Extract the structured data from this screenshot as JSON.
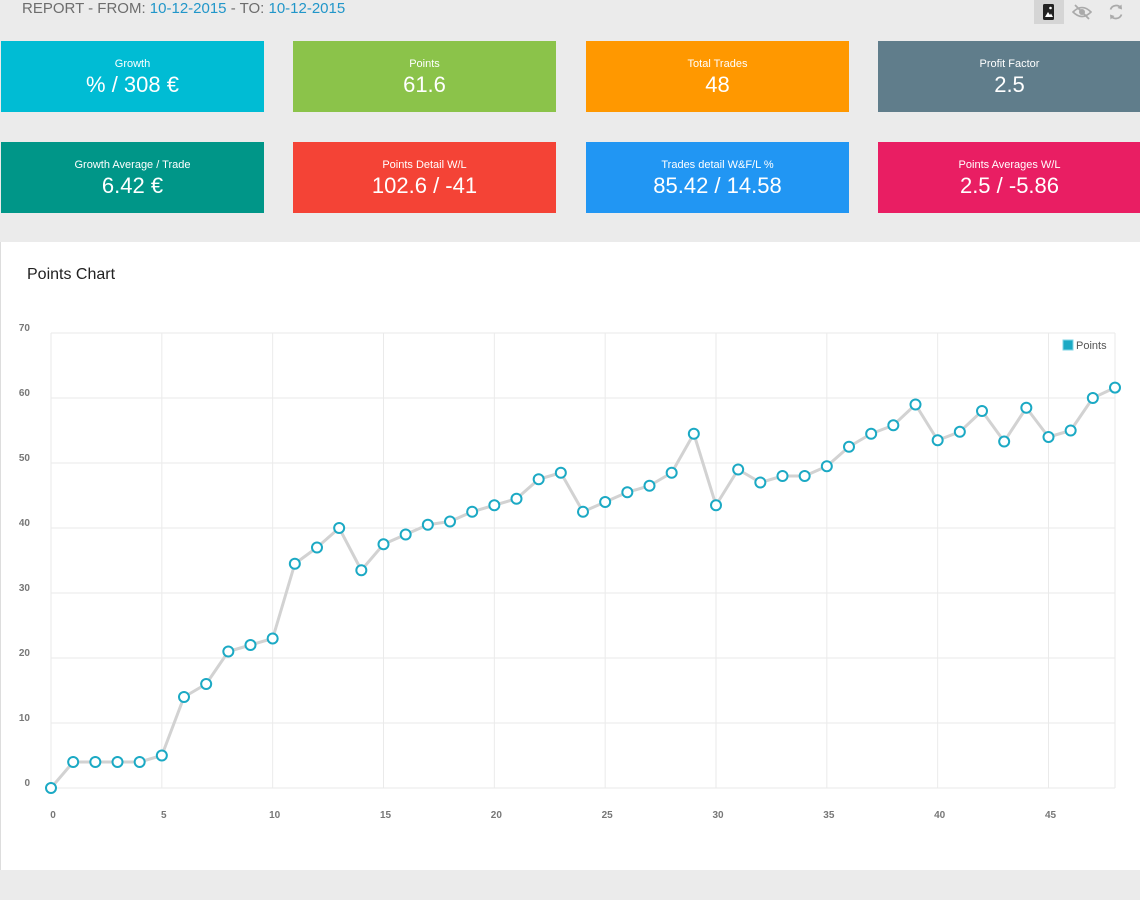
{
  "header": {
    "prefix": "REPORT - FROM: ",
    "from_date": "10-12-2015",
    "separator": " - TO: ",
    "to_date": "10-12-2015",
    "tools": [
      {
        "icon": "bookmark-image-icon",
        "active": true
      },
      {
        "icon": "eye-off-icon",
        "active": false
      },
      {
        "icon": "refresh-icon",
        "active": false
      }
    ]
  },
  "cards": [
    {
      "label": "Growth",
      "value": "% / 308 €",
      "color": "#00bcd4"
    },
    {
      "label": "Points",
      "value": "61.6",
      "color": "#8bc34a"
    },
    {
      "label": "Total Trades",
      "value": "48",
      "color": "#ff9800"
    },
    {
      "label": "Profit Factor",
      "value": "2.5",
      "color": "#607d8b"
    },
    {
      "label": "Growth Average / Trade",
      "value": "6.42 €",
      "color": "#009688"
    },
    {
      "label": "Points Detail W/L",
      "value": "102.6 / -41",
      "color": "#f44336"
    },
    {
      "label": "Trades detail W&F/L %",
      "value": "85.42 / 14.58",
      "color": "#2196f3"
    },
    {
      "label": "Points Averages W/L",
      "value": "2.5 / -5.86",
      "color": "#e91e63"
    }
  ],
  "chart_title": "Points Chart",
  "chart_data": {
    "type": "line",
    "title": "Points Chart",
    "xlabel": "",
    "ylabel": "",
    "xlim": [
      0,
      48
    ],
    "ylim": [
      0,
      70
    ],
    "x_ticks": [
      0,
      5,
      10,
      15,
      20,
      25,
      30,
      35,
      40,
      45
    ],
    "y_ticks": [
      0,
      10,
      20,
      30,
      40,
      50,
      60,
      70
    ],
    "x_grid_step": 5,
    "y_grid_step": 10,
    "grid": true,
    "legend": "top-right",
    "line_color": "#d2d2d2",
    "marker_color": "#1ba9c4",
    "series": [
      {
        "name": "Points",
        "x": [
          0,
          1,
          2,
          3,
          4,
          5,
          6,
          7,
          8,
          9,
          10,
          11,
          12,
          13,
          14,
          15,
          16,
          17,
          18,
          19,
          20,
          21,
          22,
          23,
          24,
          25,
          26,
          27,
          28,
          29,
          30,
          31,
          32,
          33,
          34,
          35,
          36,
          37,
          38,
          39,
          40,
          41,
          42,
          43,
          44,
          45,
          46,
          47,
          48
        ],
        "values": [
          0,
          4,
          4,
          4,
          4,
          5,
          14,
          16,
          21,
          22,
          23,
          34.5,
          37,
          40,
          33.5,
          37.5,
          39,
          40.5,
          41,
          42.5,
          43.5,
          44.5,
          47.5,
          48.5,
          42.5,
          44,
          45.5,
          46.5,
          48.5,
          54.5,
          43.5,
          49,
          47,
          48,
          48,
          49.5,
          52.5,
          54.5,
          55.8,
          59,
          53.5,
          54.8,
          58,
          53.3,
          58.5,
          54,
          55,
          60,
          61.6
        ]
      }
    ]
  }
}
